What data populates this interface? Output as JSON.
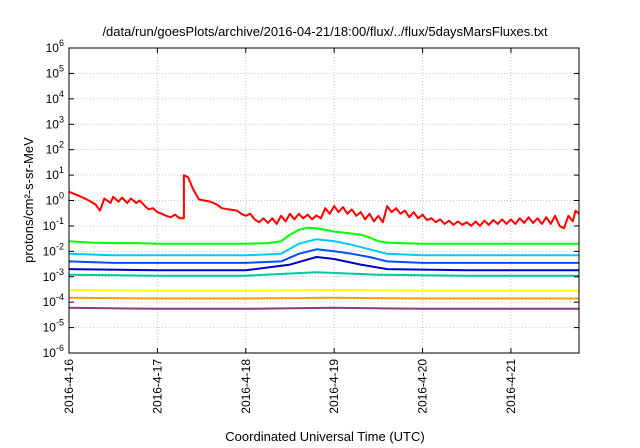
{
  "chart_data": {
    "type": "line",
    "title": "/data/run/goesPlots/archive/2016-04-21/18:00/flux/../flux/5daysMarsFluxes.txt",
    "xlabel": "Coordinated Universal Time (UTC)",
    "ylabel": "protons/cm²-s-sr-MeV",
    "x_ticks": [
      "2016-4-16",
      "2016-4-17",
      "2016-4-18",
      "2016-4-19",
      "2016-4-20",
      "2016-4-21"
    ],
    "x_range_days": [
      0,
      5.77
    ],
    "y_scale": "log",
    "y_ticks": [
      "10-6",
      "10-5",
      "10-4",
      "10-3",
      "10-2",
      "10-1",
      "100",
      "101",
      "102",
      "103",
      "104",
      "105",
      "106"
    ],
    "ylim": [
      1e-06,
      1000000.0
    ],
    "grid": true,
    "series": [
      {
        "color": "#ff0000",
        "points": [
          [
            0,
            2.2
          ],
          [
            0.1,
            1.6
          ],
          [
            0.2,
            1.1
          ],
          [
            0.3,
            0.7
          ],
          [
            0.35,
            0.4
          ],
          [
            0.4,
            1.2
          ],
          [
            0.47,
            0.8
          ],
          [
            0.5,
            1.4
          ],
          [
            0.56,
            0.9
          ],
          [
            0.6,
            1.3
          ],
          [
            0.66,
            0.8
          ],
          [
            0.7,
            1.2
          ],
          [
            0.76,
            0.8
          ],
          [
            0.8,
            1.0
          ],
          [
            0.86,
            0.6
          ],
          [
            0.9,
            0.45
          ],
          [
            0.95,
            0.5
          ],
          [
            1.0,
            0.35
          ],
          [
            1.05,
            0.3
          ],
          [
            1.1,
            0.25
          ],
          [
            1.15,
            0.22
          ],
          [
            1.2,
            0.28
          ],
          [
            1.25,
            0.2
          ],
          [
            1.3,
            0.2
          ],
          [
            1.3,
            10.0
          ],
          [
            1.35,
            8.0
          ],
          [
            1.4,
            3.0
          ],
          [
            1.47,
            1.1
          ],
          [
            1.53,
            1.0
          ],
          [
            1.6,
            0.9
          ],
          [
            1.67,
            0.7
          ],
          [
            1.73,
            0.5
          ],
          [
            1.8,
            0.45
          ],
          [
            1.9,
            0.4
          ],
          [
            1.95,
            0.3
          ],
          [
            2.0,
            0.25
          ],
          [
            2.05,
            0.3
          ],
          [
            2.1,
            0.18
          ],
          [
            2.15,
            0.14
          ],
          [
            2.2,
            0.2
          ],
          [
            2.25,
            0.13
          ],
          [
            2.3,
            0.2
          ],
          [
            2.35,
            0.12
          ],
          [
            2.4,
            0.25
          ],
          [
            2.45,
            0.15
          ],
          [
            2.5,
            0.3
          ],
          [
            2.55,
            0.18
          ],
          [
            2.6,
            0.3
          ],
          [
            2.65,
            0.2
          ],
          [
            2.7,
            0.28
          ],
          [
            2.75,
            0.18
          ],
          [
            2.8,
            0.26
          ],
          [
            2.85,
            0.2
          ],
          [
            2.9,
            0.5
          ],
          [
            2.95,
            0.3
          ],
          [
            3.0,
            0.6
          ],
          [
            3.05,
            0.35
          ],
          [
            3.1,
            0.55
          ],
          [
            3.15,
            0.3
          ],
          [
            3.2,
            0.45
          ],
          [
            3.25,
            0.25
          ],
          [
            3.3,
            0.35
          ],
          [
            3.35,
            0.18
          ],
          [
            3.4,
            0.3
          ],
          [
            3.45,
            0.15
          ],
          [
            3.5,
            0.25
          ],
          [
            3.55,
            0.14
          ],
          [
            3.6,
            0.6
          ],
          [
            3.65,
            0.35
          ],
          [
            3.7,
            0.5
          ],
          [
            3.75,
            0.3
          ],
          [
            3.8,
            0.4
          ],
          [
            3.85,
            0.22
          ],
          [
            3.9,
            0.35
          ],
          [
            3.95,
            0.2
          ],
          [
            4.0,
            0.28
          ],
          [
            4.05,
            0.17
          ],
          [
            4.1,
            0.2
          ],
          [
            4.15,
            0.14
          ],
          [
            4.2,
            0.18
          ],
          [
            4.25,
            0.12
          ],
          [
            4.3,
            0.16
          ],
          [
            4.35,
            0.11
          ],
          [
            4.4,
            0.15
          ],
          [
            4.45,
            0.11
          ],
          [
            4.5,
            0.14
          ],
          [
            4.55,
            0.1
          ],
          [
            4.6,
            0.15
          ],
          [
            4.65,
            0.1
          ],
          [
            4.7,
            0.16
          ],
          [
            4.75,
            0.11
          ],
          [
            4.8,
            0.17
          ],
          [
            4.85,
            0.12
          ],
          [
            4.9,
            0.18
          ],
          [
            4.95,
            0.12
          ],
          [
            5.0,
            0.18
          ],
          [
            5.05,
            0.12
          ],
          [
            5.1,
            0.2
          ],
          [
            5.15,
            0.13
          ],
          [
            5.2,
            0.22
          ],
          [
            5.25,
            0.13
          ],
          [
            5.3,
            0.2
          ],
          [
            5.35,
            0.12
          ],
          [
            5.4,
            0.22
          ],
          [
            5.45,
            0.12
          ],
          [
            5.5,
            0.25
          ],
          [
            5.55,
            0.1
          ],
          [
            5.6,
            0.08
          ],
          [
            5.65,
            0.25
          ],
          [
            5.7,
            0.15
          ],
          [
            5.73,
            0.4
          ],
          [
            5.77,
            0.3
          ]
        ]
      },
      {
        "color": "#00ff00",
        "points": [
          [
            0,
            0.025
          ],
          [
            0.25,
            0.022
          ],
          [
            0.5,
            0.021
          ],
          [
            0.75,
            0.021
          ],
          [
            1.0,
            0.02
          ],
          [
            1.25,
            0.02
          ],
          [
            1.5,
            0.02
          ],
          [
            1.75,
            0.02
          ],
          [
            2.0,
            0.02
          ],
          [
            2.25,
            0.021
          ],
          [
            2.4,
            0.025
          ],
          [
            2.5,
            0.045
          ],
          [
            2.6,
            0.07
          ],
          [
            2.7,
            0.085
          ],
          [
            2.8,
            0.08
          ],
          [
            2.9,
            0.07
          ],
          [
            3.0,
            0.06
          ],
          [
            3.1,
            0.055
          ],
          [
            3.2,
            0.05
          ],
          [
            3.3,
            0.045
          ],
          [
            3.4,
            0.035
          ],
          [
            3.5,
            0.025
          ],
          [
            3.6,
            0.022
          ],
          [
            3.75,
            0.021
          ],
          [
            4.0,
            0.02
          ],
          [
            4.25,
            0.02
          ],
          [
            4.5,
            0.02
          ],
          [
            4.75,
            0.02
          ],
          [
            5.0,
            0.02
          ],
          [
            5.25,
            0.02
          ],
          [
            5.5,
            0.02
          ],
          [
            5.77,
            0.02
          ]
        ]
      },
      {
        "color": "#00c8ff",
        "points": [
          [
            0,
            0.008
          ],
          [
            0.5,
            0.007
          ],
          [
            1.0,
            0.007
          ],
          [
            1.5,
            0.007
          ],
          [
            2.0,
            0.007
          ],
          [
            2.4,
            0.008
          ],
          [
            2.6,
            0.02
          ],
          [
            2.8,
            0.03
          ],
          [
            3.0,
            0.025
          ],
          [
            3.2,
            0.018
          ],
          [
            3.4,
            0.012
          ],
          [
            3.6,
            0.008
          ],
          [
            4.0,
            0.007
          ],
          [
            4.5,
            0.007
          ],
          [
            5.0,
            0.007
          ],
          [
            5.5,
            0.007
          ],
          [
            5.77,
            0.007
          ]
        ]
      },
      {
        "color": "#0050ff",
        "points": [
          [
            0,
            0.004
          ],
          [
            0.5,
            0.0035
          ],
          [
            1.0,
            0.0035
          ],
          [
            1.5,
            0.0035
          ],
          [
            2.0,
            0.0035
          ],
          [
            2.4,
            0.004
          ],
          [
            2.6,
            0.008
          ],
          [
            2.8,
            0.012
          ],
          [
            3.0,
            0.01
          ],
          [
            3.2,
            0.008
          ],
          [
            3.4,
            0.006
          ],
          [
            3.6,
            0.004
          ],
          [
            4.0,
            0.0035
          ],
          [
            4.5,
            0.0035
          ],
          [
            5.0,
            0.0035
          ],
          [
            5.5,
            0.0035
          ],
          [
            5.77,
            0.0035
          ]
        ]
      },
      {
        "color": "#0000c8",
        "points": [
          [
            0,
            0.002
          ],
          [
            1.0,
            0.0018
          ],
          [
            2.0,
            0.0018
          ],
          [
            2.5,
            0.003
          ],
          [
            2.8,
            0.006
          ],
          [
            3.0,
            0.005
          ],
          [
            3.3,
            0.003
          ],
          [
            3.6,
            0.002
          ],
          [
            4.5,
            0.0018
          ],
          [
            5.77,
            0.0018
          ]
        ]
      },
      {
        "color": "#00c8a0",
        "points": [
          [
            0,
            0.0012
          ],
          [
            1.0,
            0.0011
          ],
          [
            2.0,
            0.0011
          ],
          [
            2.8,
            0.0015
          ],
          [
            3.5,
            0.0012
          ],
          [
            4.5,
            0.0011
          ],
          [
            5.77,
            0.0011
          ]
        ]
      },
      {
        "color": "#ffff00",
        "points": [
          [
            0,
            0.0003
          ],
          [
            1.0,
            0.00028
          ],
          [
            2.0,
            0.00028
          ],
          [
            3.0,
            0.0003
          ],
          [
            4.0,
            0.00028
          ],
          [
            5.0,
            0.00028
          ],
          [
            5.77,
            0.00028
          ]
        ]
      },
      {
        "color": "#ffa000",
        "points": [
          [
            0,
            0.00015
          ],
          [
            1.0,
            0.00014
          ],
          [
            2.0,
            0.00014
          ],
          [
            3.0,
            0.00015
          ],
          [
            4.0,
            0.00014
          ],
          [
            5.0,
            0.00014
          ],
          [
            5.77,
            0.00014
          ]
        ]
      },
      {
        "color": "#8c3c78",
        "points": [
          [
            0,
            6e-05
          ],
          [
            1.0,
            5.5e-05
          ],
          [
            2.0,
            5.5e-05
          ],
          [
            3.0,
            6e-05
          ],
          [
            4.0,
            5.5e-05
          ],
          [
            5.0,
            5.5e-05
          ],
          [
            5.77,
            5.5e-05
          ]
        ]
      }
    ]
  }
}
